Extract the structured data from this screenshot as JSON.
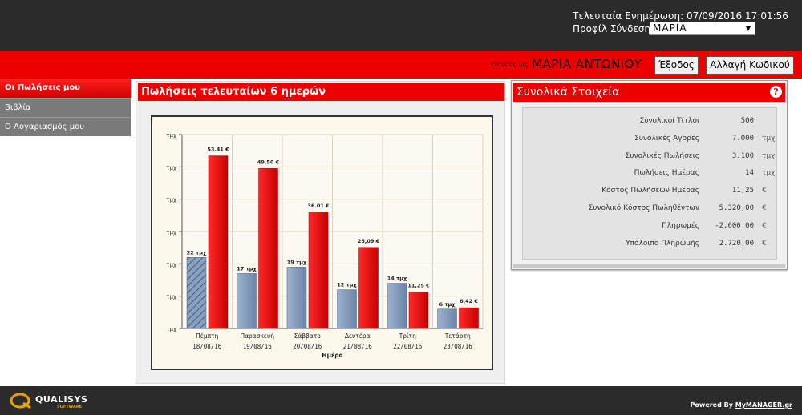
{
  "header": {
    "last_update_label": "Τελευταία Ενημέρωση:",
    "last_update_value": "07/09/2016 17:01:56",
    "profile_label": "Προφίλ Σύνδεσης:",
    "profile_selected": "ΜΑΡΙΑ"
  },
  "userbar": {
    "login_as_label": "Είσοδος ως",
    "user_name": "ΜΑΡΙΑ ΑΝΤΩΝΙΟΥ",
    "exit_button": "Έξοδος",
    "change_password_button": "Αλλαγή Κωδικού"
  },
  "sidebar": {
    "items": [
      {
        "label": "Οι Πωλήσεις μου",
        "active": true
      },
      {
        "label": "Βιβλία",
        "active": false
      },
      {
        "label": "Ο Λογαριασμός μου",
        "active": false
      }
    ]
  },
  "sales_panel": {
    "title": "Πωλήσεις τελευταίων 6 ημερών"
  },
  "chart_data": {
    "type": "bar",
    "xlabel": "Ημέρα",
    "ylabel": "",
    "y_tick_labels": [
      "τμχ",
      "τμχ",
      "τμχ",
      "τμχ",
      "τμχ",
      "τμχ",
      "τμχ"
    ],
    "grid": true,
    "categories": [
      {
        "day": "Πέμπτη",
        "date": "18/08/16"
      },
      {
        "day": "Παρασκευή",
        "date": "19/08/16"
      },
      {
        "day": "Σάββατο",
        "date": "20/08/16"
      },
      {
        "day": "Δευτέρα",
        "date": "21/08/16"
      },
      {
        "day": "Τρίτη",
        "date": "22/08/16"
      },
      {
        "day": "Τετάρτη",
        "date": "23/08/16"
      }
    ],
    "series": [
      {
        "values": [
          22,
          17,
          19,
          12,
          14,
          6
        ],
        "labels": [
          "22 τμχ",
          "17 τμχ",
          "19 τμχ",
          "12 τμχ",
          "14 τμχ",
          "6 τμχ"
        ],
        "color": "#7d93b3"
      },
      {
        "values": [
          53.41,
          49.5,
          36.01,
          25.09,
          11.25,
          6.42
        ],
        "labels": [
          "53.41 €",
          "49.50 €",
          "36.01 €",
          "25,09 €",
          "11,25 €",
          "6,42 €"
        ],
        "color": "#e80f0f"
      }
    ],
    "ylim": [
      0,
      60
    ]
  },
  "totals_panel": {
    "title": "Συνολικά Στοιχεία",
    "rows": [
      {
        "label": "Συνολικοί Τίτλοι",
        "value": "500",
        "unit": ""
      },
      {
        "label": "Συνολικές Αγορές",
        "value": "7.000",
        "unit": "τμχ"
      },
      {
        "label": "Συνολικές Πωλήσεις",
        "value": "3.100",
        "unit": "τμχ"
      },
      {
        "label": "Πωλήσεις Ημέρας",
        "value": "14",
        "unit": "τμχ"
      },
      {
        "label": "Κόστος Πωλήσεων Ημέρας",
        "value": "11,25",
        "unit": "€"
      },
      {
        "label": "Συνολικό Κόστος Πωληθέντων",
        "value": "5.320,00",
        "unit": "€"
      },
      {
        "label": "Πληρωμές",
        "value": "-2.600,00",
        "unit": "€"
      },
      {
        "label": "Υπόλοιπο Πληρωμής",
        "value": "2.720,00",
        "unit": "€"
      }
    ]
  },
  "footer": {
    "logo_name": "QUALISYS",
    "logo_sub": "SOFTWARE",
    "powered_by": "Powered By",
    "powered_link": "MyMANAGER.gr"
  },
  "colors": {
    "brand_red": "#ee0000",
    "dark_bar": "#2b2b2b",
    "sidebar_gray": "#7a7a7a"
  }
}
